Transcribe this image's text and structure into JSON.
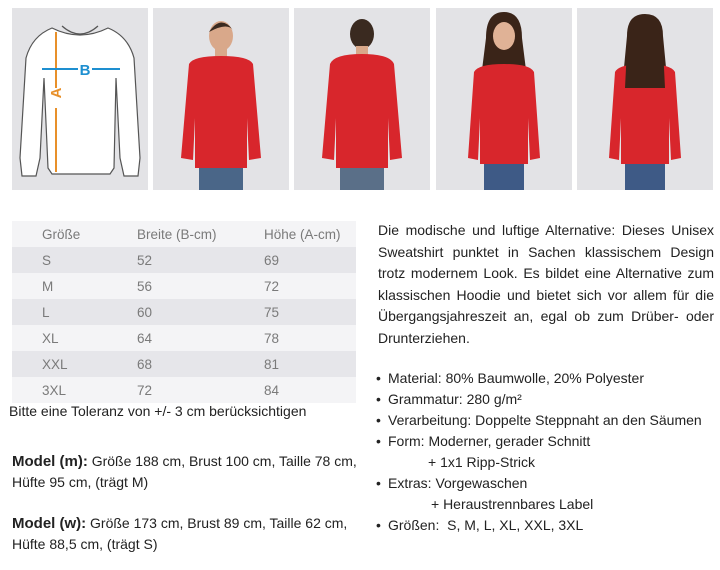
{
  "diagram": {
    "label_a": "A",
    "label_b": "B",
    "color_a": "#e8902a",
    "color_b": "#1e8fd0"
  },
  "size_table": {
    "headers": [
      "Größe",
      "Breite (B-cm)",
      "Höhe (A-cm)"
    ],
    "rows": [
      [
        "S",
        "52",
        "69"
      ],
      [
        "M",
        "56",
        "72"
      ],
      [
        "L",
        "60",
        "75"
      ],
      [
        "XL",
        "64",
        "78"
      ],
      [
        "XXL",
        "68",
        "81"
      ],
      [
        "3XL",
        "72",
        "84"
      ]
    ]
  },
  "tolerance_note": "Bitte eine Toleranz von +/- 3 cm berücksichtigen",
  "model_m": {
    "label": "Model (m):",
    "line1": "Größe 188 cm, Brust 100 cm, Taille 78 cm,",
    "line2": "Hüfte 95 cm, (trägt M)"
  },
  "model_w": {
    "label": "Model (w):",
    "line1": "Größe 173 cm, Brust 89 cm, Taille 62 cm,",
    "line2": "Hüfte 88,5 cm, (trägt S)"
  },
  "description": "Die modische und luftige Alternative: Dieses Unisex Sweatshirt punktet in Sachen klassischem Design trotz modernem Look. Es bildet eine Alternative zum klassischen Hoodie und bietet sich vor allem für die Übergangsjahreszeit an, egal ob zum Drüber- oder Drunterziehen.",
  "features": [
    "Material: 80% Baumwolle, 20% Polyester",
    "Grammatur: 280 g/m²",
    "Verarbeitung: Doppelte Steppnaht an den Säumen",
    "Form: Moderner, gerader Schnitt",
    "+ 1x1 Ripp-Strick",
    "Extras: Vorgewaschen",
    "+ Heraustrennbares Label",
    "Größen:  S, M, L, XL, XXL, 3XL"
  ],
  "product_color": "#d8262c"
}
